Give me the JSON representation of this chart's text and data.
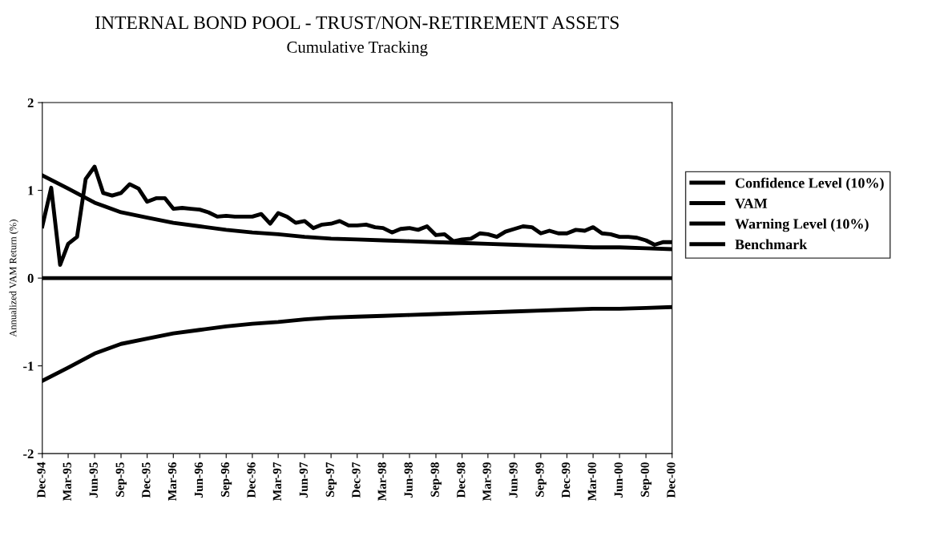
{
  "chart_data": {
    "type": "line",
    "title": "INTERNAL BOND POOL - TRUST/NON-RETIREMENT ASSETS",
    "subtitle": "Cumulative Tracking",
    "ylabel": "Annualized VAM Return (%)",
    "series": [
      {
        "name": "Confidence Level (10%)",
        "color": "#000000",
        "x": [
          "1994-12",
          "1995-03",
          "1995-06",
          "1995-09",
          "1995-12",
          "1996-03",
          "1996-06",
          "1996-09",
          "1996-12",
          "1997-03",
          "1997-06",
          "1997-09",
          "1997-12",
          "1998-03",
          "1998-06",
          "1998-09",
          "1998-12",
          "1999-03",
          "1999-06",
          "1999-09",
          "1999-12",
          "2000-03",
          "2000-06",
          "2000-09",
          "2000-12"
        ],
        "values": [
          1.17,
          1.02,
          0.86,
          0.75,
          0.69,
          0.63,
          0.59,
          0.55,
          0.52,
          0.5,
          0.47,
          0.45,
          0.44,
          0.43,
          0.42,
          0.41,
          0.4,
          0.39,
          0.38,
          0.37,
          0.36,
          0.35,
          0.35,
          0.34,
          0.33
        ]
      },
      {
        "name": "VAM",
        "color": "#000000",
        "x": [
          "1994-12",
          "1995-01",
          "1995-02",
          "1995-03",
          "1995-04",
          "1995-05",
          "1995-06",
          "1995-07",
          "1995-08",
          "1995-09",
          "1995-10",
          "1995-11",
          "1995-12",
          "1996-01",
          "1996-02",
          "1996-03",
          "1996-04",
          "1996-05",
          "1996-06",
          "1996-07",
          "1996-08",
          "1996-09",
          "1996-10",
          "1996-11",
          "1996-12",
          "1997-01",
          "1997-02",
          "1997-03",
          "1997-04",
          "1997-05",
          "1997-06",
          "1997-07",
          "1997-08",
          "1997-09",
          "1997-10",
          "1997-11",
          "1997-12",
          "1998-01",
          "1998-02",
          "1998-03",
          "1998-04",
          "1998-05",
          "1998-06",
          "1998-07",
          "1998-08",
          "1998-09",
          "1998-10",
          "1998-11",
          "1998-12",
          "1999-01",
          "1999-02",
          "1999-03",
          "1999-04",
          "1999-05",
          "1999-06",
          "1999-07",
          "1999-08",
          "1999-09",
          "1999-10",
          "1999-11",
          "1999-12",
          "2000-01",
          "2000-02",
          "2000-03",
          "2000-04",
          "2000-05",
          "2000-06",
          "2000-07",
          "2000-08",
          "2000-09",
          "2000-10",
          "2000-11",
          "2000-12"
        ],
        "values": [
          0.59,
          1.03,
          0.15,
          0.39,
          0.47,
          1.13,
          1.27,
          0.97,
          0.94,
          0.97,
          1.07,
          1.02,
          0.87,
          0.91,
          0.91,
          0.79,
          0.8,
          0.79,
          0.78,
          0.75,
          0.7,
          0.71,
          0.7,
          0.7,
          0.7,
          0.73,
          0.62,
          0.74,
          0.7,
          0.63,
          0.65,
          0.57,
          0.61,
          0.62,
          0.65,
          0.6,
          0.6,
          0.61,
          0.58,
          0.57,
          0.52,
          0.56,
          0.57,
          0.55,
          0.59,
          0.49,
          0.5,
          0.42,
          0.44,
          0.45,
          0.51,
          0.5,
          0.47,
          0.53,
          0.56,
          0.59,
          0.58,
          0.51,
          0.54,
          0.51,
          0.51,
          0.55,
          0.54,
          0.58,
          0.51,
          0.5,
          0.47,
          0.47,
          0.46,
          0.43,
          0.38,
          0.41,
          0.41
        ]
      },
      {
        "name": "Warning Level (10%)",
        "color": "#000000",
        "x": [
          "1994-12",
          "1995-03",
          "1995-06",
          "1995-09",
          "1995-12",
          "1996-03",
          "1996-06",
          "1996-09",
          "1996-12",
          "1997-03",
          "1997-06",
          "1997-09",
          "1997-12",
          "1998-03",
          "1998-06",
          "1998-09",
          "1998-12",
          "1999-03",
          "1999-06",
          "1999-09",
          "1999-12",
          "2000-03",
          "2000-06",
          "2000-09",
          "2000-12"
        ],
        "values": [
          -1.17,
          -1.02,
          -0.86,
          -0.75,
          -0.69,
          -0.63,
          -0.59,
          -0.55,
          -0.52,
          -0.5,
          -0.47,
          -0.45,
          -0.44,
          -0.43,
          -0.42,
          -0.41,
          -0.4,
          -0.39,
          -0.38,
          -0.37,
          -0.36,
          -0.35,
          -0.35,
          -0.34,
          -0.33
        ]
      },
      {
        "name": "Benchmark",
        "color": "#000000",
        "x": [
          "1994-12",
          "2000-12"
        ],
        "values": [
          0,
          0
        ]
      }
    ],
    "xlim": [
      "1994-12",
      "2000-12"
    ],
    "xticks": [
      {
        "value": "1994-12",
        "label": "Dec-94"
      },
      {
        "value": "1995-03",
        "label": "Mar-95"
      },
      {
        "value": "1995-06",
        "label": "Jun-95"
      },
      {
        "value": "1995-09",
        "label": "Sep-95"
      },
      {
        "value": "1995-12",
        "label": "Dec-95"
      },
      {
        "value": "1996-03",
        "label": "Mar-96"
      },
      {
        "value": "1996-06",
        "label": "Jun-96"
      },
      {
        "value": "1996-09",
        "label": "Sep-96"
      },
      {
        "value": "1996-12",
        "label": "Dec-96"
      },
      {
        "value": "1997-03",
        "label": "Mar-97"
      },
      {
        "value": "1997-06",
        "label": "Jun-97"
      },
      {
        "value": "1997-09",
        "label": "Sep-97"
      },
      {
        "value": "1997-12",
        "label": "Dec-97"
      },
      {
        "value": "1998-03",
        "label": "Mar-98"
      },
      {
        "value": "1998-06",
        "label": "Jun-98"
      },
      {
        "value": "1998-09",
        "label": "Sep-98"
      },
      {
        "value": "1998-12",
        "label": "Dec-98"
      },
      {
        "value": "1999-03",
        "label": "Mar-99"
      },
      {
        "value": "1999-06",
        "label": "Jun-99"
      },
      {
        "value": "1999-09",
        "label": "Sep-99"
      },
      {
        "value": "1999-12",
        "label": "Dec-99"
      },
      {
        "value": "2000-03",
        "label": "Mar-00"
      },
      {
        "value": "2000-06",
        "label": "Jun-00"
      },
      {
        "value": "2000-09",
        "label": "Sep-00"
      },
      {
        "value": "2000-12",
        "label": "Dec-00"
      }
    ],
    "ylim": [
      -2,
      2
    ],
    "yticks": [
      -2,
      -1,
      0,
      1,
      2
    ],
    "grid": false,
    "legend": "right",
    "marker": "none",
    "line_style": "solid"
  }
}
